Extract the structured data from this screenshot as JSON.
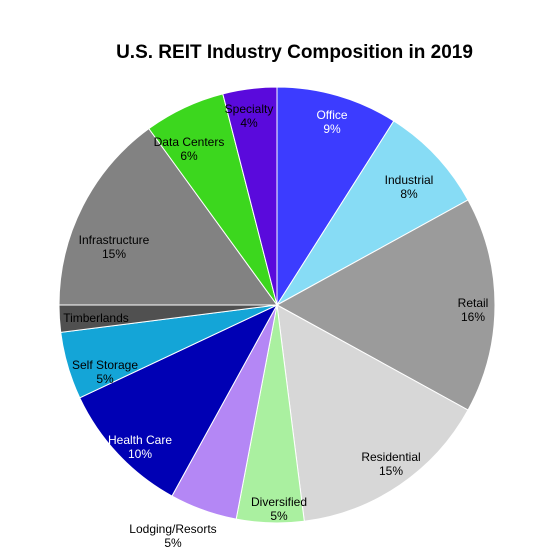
{
  "chart_data": {
    "type": "pie",
    "title": "U.S. REIT Industry Composition in 2019",
    "slices": [
      {
        "label": "Office",
        "value": 9,
        "value_label": "9%",
        "color": "#3c3cff",
        "text_color": "#ffffff"
      },
      {
        "label": "Industrial",
        "value": 8,
        "value_label": "8%",
        "color": "#87dcf5",
        "text_color": "#000000"
      },
      {
        "label": "Retail",
        "value": 16,
        "value_label": "16%",
        "color": "#9b9b9b",
        "text_color": "#000000"
      },
      {
        "label": "Residential",
        "value": 15,
        "value_label": "15%",
        "color": "#d7d7d7",
        "text_color": "#000000"
      },
      {
        "label": "Diversified",
        "value": 5,
        "value_label": "5%",
        "color": "#aaf0a0",
        "text_color": "#000000"
      },
      {
        "label": "Lodging/Resorts",
        "value": 5,
        "value_label": "5%",
        "color": "#b487f5",
        "text_color": "#000000"
      },
      {
        "label": "Health Care",
        "value": 10,
        "value_label": "10%",
        "color": "#0000b4",
        "text_color": "#ffffff"
      },
      {
        "label": "Self Storage",
        "value": 5,
        "value_label": "5%",
        "color": "#14a5d7",
        "text_color": "#000000"
      },
      {
        "label": "Timberlands",
        "value": 2,
        "value_label": "",
        "color": "#505050",
        "text_color": "#000000"
      },
      {
        "label": "Infrastructure",
        "value": 15,
        "value_label": "15%",
        "color": "#828282",
        "text_color": "#000000"
      },
      {
        "label": "Data Centers",
        "value": 6,
        "value_label": "6%",
        "color": "#3cd71e",
        "text_color": "#000000"
      },
      {
        "label": "Specialty",
        "value": 4,
        "value_label": "4%",
        "color": "#5a0adc",
        "text_color": "#000000"
      }
    ]
  }
}
